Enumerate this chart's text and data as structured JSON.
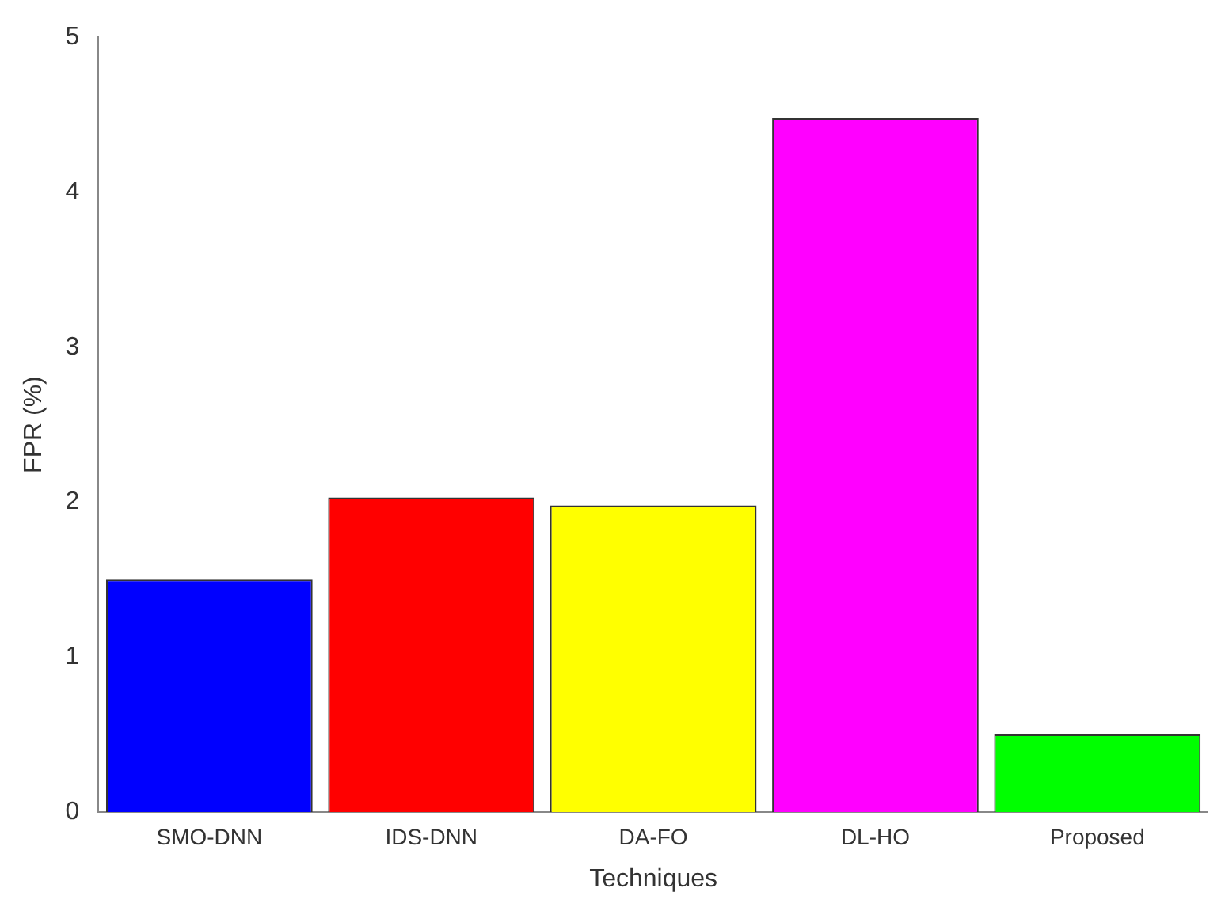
{
  "chart_data": {
    "type": "bar",
    "xlabel": "Techniques",
    "ylabel": "FPR (%)",
    "categories": [
      "SMO-DNN",
      "IDS-DNN",
      "DA-FO",
      "DL-HO",
      "Proposed"
    ],
    "values": [
      1.5,
      2.03,
      1.98,
      4.48,
      0.5
    ],
    "colors": [
      "#0000ff",
      "#ff0000",
      "#ffff00",
      "#ff00ff",
      "#00ff00"
    ],
    "ylim": [
      0,
      5
    ],
    "yticks": [
      0,
      1,
      2,
      3,
      4,
      5
    ],
    "grid": false
  }
}
